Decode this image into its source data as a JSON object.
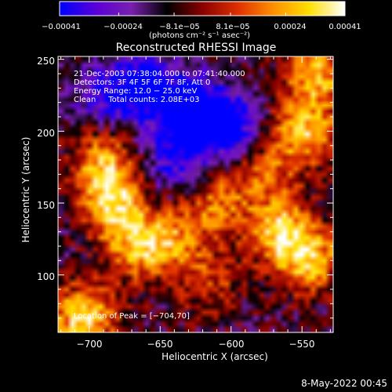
{
  "chart_data": {
    "type": "heatmap",
    "title": "Reconstructed RHESSI Image",
    "xlabel": "Heliocentric X (arcsec)",
    "ylabel": "Heliocentric Y (arcsec)",
    "xlim": [
      -722,
      -528
    ],
    "ylim": [
      60,
      252
    ],
    "x_ticks": [
      -700,
      -650,
      -600,
      -550
    ],
    "x_tick_labels": [
      "−700",
      "−650",
      "−600",
      "−550"
    ],
    "y_ticks": [
      100,
      150,
      200,
      250
    ],
    "y_tick_labels": [
      "100",
      "150",
      "200",
      "250"
    ],
    "colorbar": {
      "min": -0.00041,
      "max": 0.00041,
      "ticks": [
        -0.00041,
        -0.00024,
        -8.1e-05,
        8.1e-05,
        0.00024,
        0.00041
      ],
      "tick_labels": [
        "−0.00041",
        "−0.00024",
        "−8.1e−05",
        "8.1e−05",
        "0.00024",
        "0.00041"
      ],
      "units": "(photons cm⁻² s⁻¹ asec⁻²)",
      "colors": [
        "#0000ff",
        "#5a00d8",
        "#7a20b0",
        "#000000",
        "#8a0000",
        "#e03000",
        "#ff9000",
        "#ffe000",
        "#ffffff"
      ]
    },
    "annotations": [
      "21-Dec-2003 07:38:04.000 to 07:41:40.000",
      "Detectors: 3F 4F 5F 6F 7F 8F, Att 0",
      "Energy Range: 12.0 − 25.0 keV",
      "Clean     Total counts: 2.08E+03"
    ],
    "peak_label": "Location of Peak = [−704,70]",
    "peak": [
      -704,
      70
    ],
    "hot_regions": [
      {
        "x": -704,
        "y": 70,
        "intensity": 1.0
      },
      {
        "x": -683,
        "y": 150,
        "intensity": 0.95
      },
      {
        "x": -690,
        "y": 180,
        "intensity": 0.7
      },
      {
        "x": -665,
        "y": 118,
        "intensity": 0.75
      },
      {
        "x": -640,
        "y": 125,
        "intensity": 0.55
      },
      {
        "x": -610,
        "y": 150,
        "intensity": 0.6
      },
      {
        "x": -565,
        "y": 130,
        "intensity": 0.85
      },
      {
        "x": -545,
        "y": 110,
        "intensity": 0.8
      },
      {
        "x": -548,
        "y": 200,
        "intensity": 0.85
      },
      {
        "x": -540,
        "y": 240,
        "intensity": 0.8
      },
      {
        "x": -575,
        "y": 170,
        "intensity": 0.5
      },
      {
        "x": -615,
        "y": 95,
        "intensity": 0.4
      }
    ],
    "cold_regions": [
      {
        "x": -660,
        "y": 230,
        "intensity": -0.8
      },
      {
        "x": -630,
        "y": 215,
        "intensity": -0.85
      },
      {
        "x": -605,
        "y": 205,
        "intensity": -0.9
      },
      {
        "x": -640,
        "y": 180,
        "intensity": -0.6
      },
      {
        "x": -690,
        "y": 225,
        "intensity": -0.5
      }
    ]
  },
  "footer_date": "8-May-2022 00:45"
}
